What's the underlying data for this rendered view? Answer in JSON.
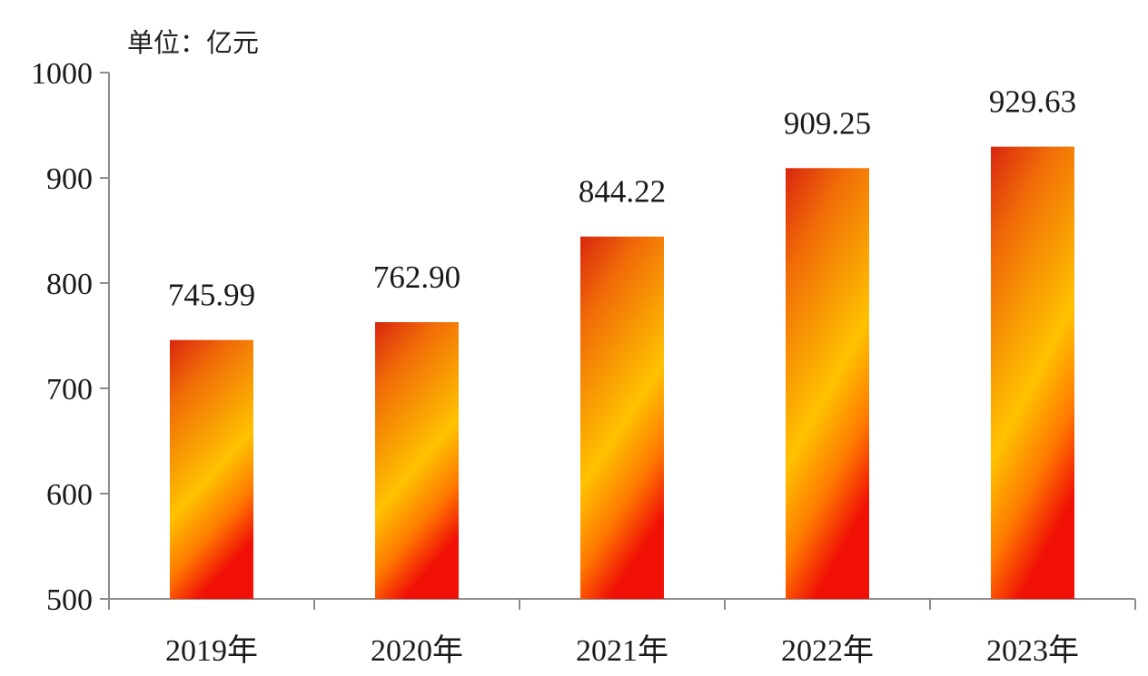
{
  "chart_data": {
    "type": "bar",
    "unit_label": "单位：亿元",
    "categories": [
      "2019年",
      "2020年",
      "2021年",
      "2022年",
      "2023年"
    ],
    "values": [
      745.99,
      762.9,
      844.22,
      909.25,
      929.63
    ],
    "value_labels": [
      "745.99",
      "762.90",
      "844.22",
      "909.25",
      "929.63"
    ],
    "ylim": [
      500,
      1000
    ],
    "yticks": [
      500,
      600,
      700,
      800,
      900,
      1000
    ],
    "grid": false,
    "bar_colors": {
      "top": "#d9260f",
      "middle": "#ffc200",
      "bottom": "#f01005"
    }
  }
}
